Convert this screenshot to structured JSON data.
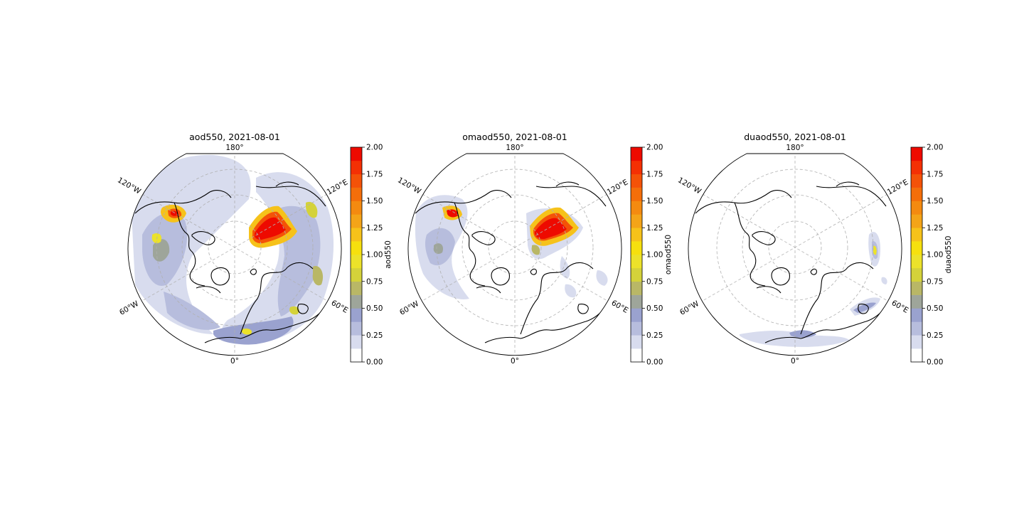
{
  "figure": {
    "panels": [
      {
        "title": "aod550, 2021-08-01",
        "colorbar_label": "aod550",
        "variable": "aod550"
      },
      {
        "title": "omaod550, 2021-08-01",
        "colorbar_label": "omaod550",
        "variable": "omaod550"
      },
      {
        "title": "duaod550, 2021-08-01",
        "colorbar_label": "duaod550",
        "variable": "duaod550"
      }
    ],
    "longitude_labels": {
      "top": "180°",
      "bottom": "0°",
      "upper_left": "120°W",
      "upper_right": "120°E",
      "lower_left": "60°W",
      "lower_right": "60°E"
    },
    "colorbar": {
      "ticks": [
        "0.00",
        "0.25",
        "0.50",
        "0.75",
        "1.00",
        "1.25",
        "1.50",
        "1.75",
        "2.00"
      ],
      "levels": [
        0,
        0.125,
        0.25,
        0.375,
        0.5,
        0.625,
        0.75,
        0.875,
        1.0,
        1.125,
        1.25,
        1.375,
        1.5,
        1.625,
        1.75,
        1.875,
        2.0
      ],
      "colors": [
        "#ffffff",
        "#d8dcee",
        "#b7bddd",
        "#9aa2cf",
        "#9ea59a",
        "#b9b766",
        "#d4d23a",
        "#ece22a",
        "#f6e00e",
        "#f6c21a",
        "#f4a418",
        "#f48a10",
        "#f46e0a",
        "#f45208",
        "#f43004",
        "#ee0a00"
      ]
    }
  },
  "chart_data": [
    {
      "type": "heatmap",
      "title": "aod550, 2021-08-01",
      "colorbar_label": "aod550",
      "range": [
        0,
        2.0
      ],
      "projection": "north polar stereographic",
      "grid": true
    },
    {
      "type": "heatmap",
      "title": "omaod550, 2021-08-01",
      "colorbar_label": "omaod550",
      "range": [
        0,
        2.0
      ],
      "projection": "north polar stereographic",
      "grid": true
    },
    {
      "type": "heatmap",
      "title": "duaod550, 2021-08-01",
      "colorbar_label": "duaod550",
      "range": [
        0,
        2.0
      ],
      "projection": "north polar stereographic",
      "grid": true
    }
  ]
}
